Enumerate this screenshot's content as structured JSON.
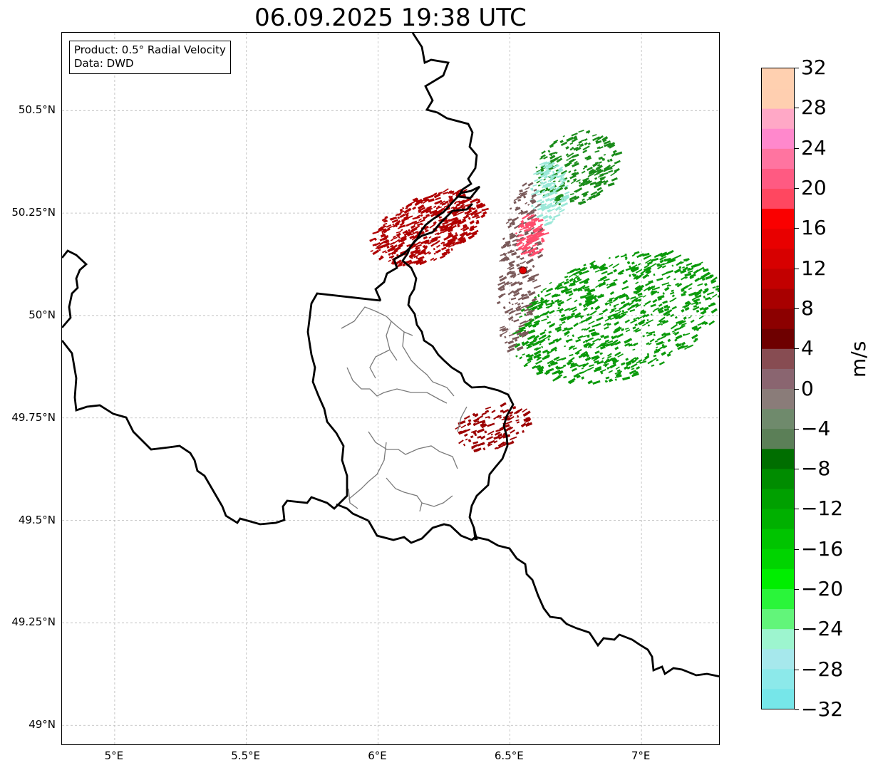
{
  "title": "06.09.2025 19:38 UTC",
  "info": {
    "product_line": "Product: 0.5° Radial Velocity",
    "data_line": "Data: DWD"
  },
  "map": {
    "lon_range": [
      4.8,
      7.3
    ],
    "lat_range": [
      48.95,
      50.69
    ],
    "lat_ticks": [
      {
        "value": 50.5,
        "label": "50.5°N"
      },
      {
        "value": 50.25,
        "label": "50.25°N"
      },
      {
        "value": 50.0,
        "label": "50°N"
      },
      {
        "value": 49.75,
        "label": "49.75°N"
      },
      {
        "value": 49.5,
        "label": "49.5°N"
      },
      {
        "value": 49.25,
        "label": "49.25°N"
      },
      {
        "value": 49.0,
        "label": "49°N"
      }
    ],
    "lon_ticks": [
      {
        "value": 5.0,
        "label": "5°E"
      },
      {
        "value": 5.5,
        "label": "5.5°E"
      },
      {
        "value": 6.0,
        "label": "6°E"
      },
      {
        "value": 6.5,
        "label": "6.5°E"
      },
      {
        "value": 7.0,
        "label": "7°E"
      }
    ],
    "gridlines": true,
    "radar_site": {
      "lon": 6.55,
      "lat": 50.11,
      "color": "#e00000"
    },
    "echo_regions": [
      {
        "name": "inbound-east",
        "color": "#0a9a0a",
        "velocity_ms": -10
      },
      {
        "name": "inbound-north",
        "color": "#1a8c1a",
        "velocity_ms": -9
      },
      {
        "name": "inbound-north-light",
        "color": "#9ae8d8",
        "velocity_ms": -26
      },
      {
        "name": "outbound-northwest",
        "color": "#b00000",
        "velocity_ms": 12
      },
      {
        "name": "outbound-south",
        "color": "#9c0000",
        "velocity_ms": 10
      },
      {
        "name": "near-zero",
        "color": "#7a5a5a",
        "velocity_ms": 3
      },
      {
        "name": "high-outbound",
        "color": "#ff4d6d",
        "velocity_ms": 22
      }
    ]
  },
  "colorbar": {
    "label": "m/s",
    "min": -32,
    "max": 32,
    "ticks": [
      -32,
      -28,
      -24,
      -20,
      -16,
      -12,
      -8,
      -4,
      0,
      4,
      8,
      12,
      16,
      20,
      24,
      28,
      32
    ],
    "tick_labels": [
      "−32",
      "−28",
      "−24",
      "−20",
      "−16",
      "−12",
      "−8",
      "−4",
      "0",
      "4",
      "8",
      "12",
      "16",
      "20",
      "24",
      "28",
      "32"
    ],
    "colors": [
      "#76e6e9",
      "#8ce9ea",
      "#a6e8ec",
      "#9df5cf",
      "#62f57a",
      "#2af53a",
      "#00ee00",
      "#00d400",
      "#00c400",
      "#00b000",
      "#00a000",
      "#008c00",
      "#006e00",
      "#5b7f57",
      "#6f8a6c",
      "#8a7c79",
      "#8a6570",
      "#874c52",
      "#6e0000",
      "#8c0000",
      "#a80000",
      "#c20000",
      "#d70000",
      "#e80000",
      "#fa0000",
      "#ff4760",
      "#ff5a82",
      "#ff74a0",
      "#ff88cc",
      "#ffa8c6",
      "#ffcfb0",
      "#ffd0b0"
    ]
  }
}
